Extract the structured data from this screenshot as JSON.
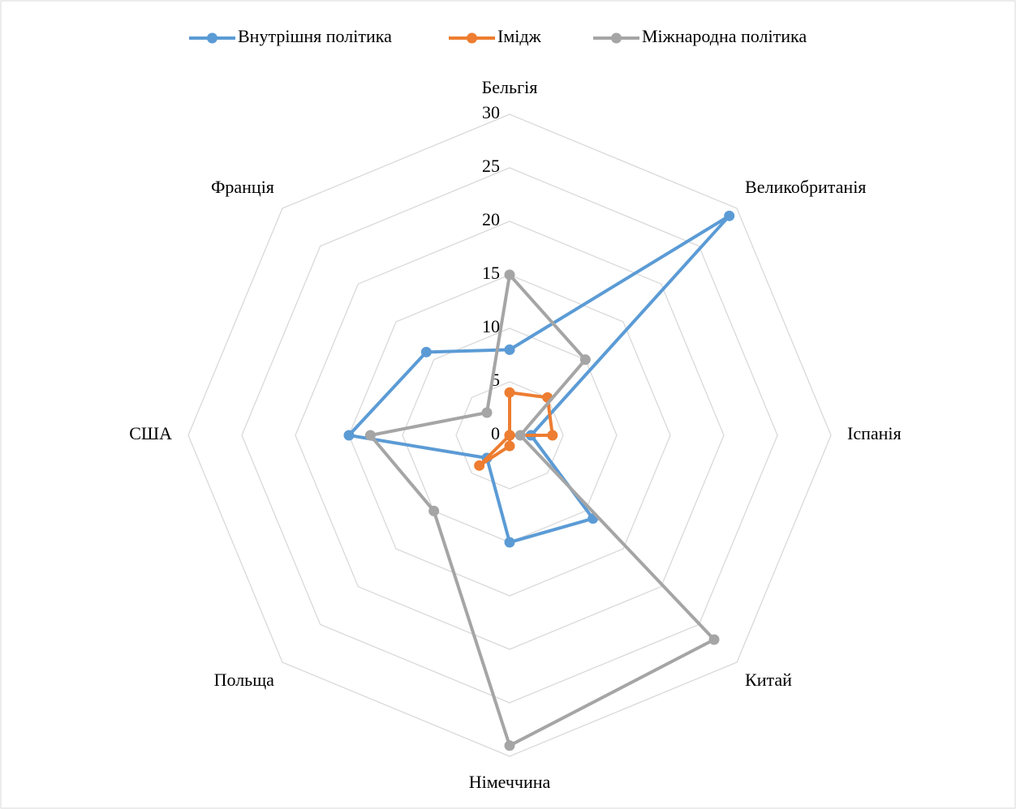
{
  "chart_data": {
    "type": "radar",
    "categories": [
      "Бельгія",
      "Великобританія",
      "Іспанія",
      "Китай",
      "Німеччина",
      "Польща",
      "США",
      "Франція"
    ],
    "series": [
      {
        "name": "Внутрішня політика",
        "color": "#5b9bd5",
        "values": [
          8,
          29,
          2,
          11,
          10,
          3,
          15,
          11
        ]
      },
      {
        "name": "Імідж",
        "color": "#ed7d31",
        "values": [
          4,
          5,
          4,
          0,
          1,
          4,
          0,
          0
        ]
      },
      {
        "name": "Міжнародна політика",
        "color": "#a5a5a5",
        "values": [
          15,
          10,
          1,
          27,
          29,
          10,
          13,
          3
        ]
      }
    ],
    "ylim": [
      0,
      30
    ],
    "yticks": [
      0,
      5,
      10,
      15,
      20,
      25,
      30
    ],
    "grid": true,
    "legend": "top"
  }
}
